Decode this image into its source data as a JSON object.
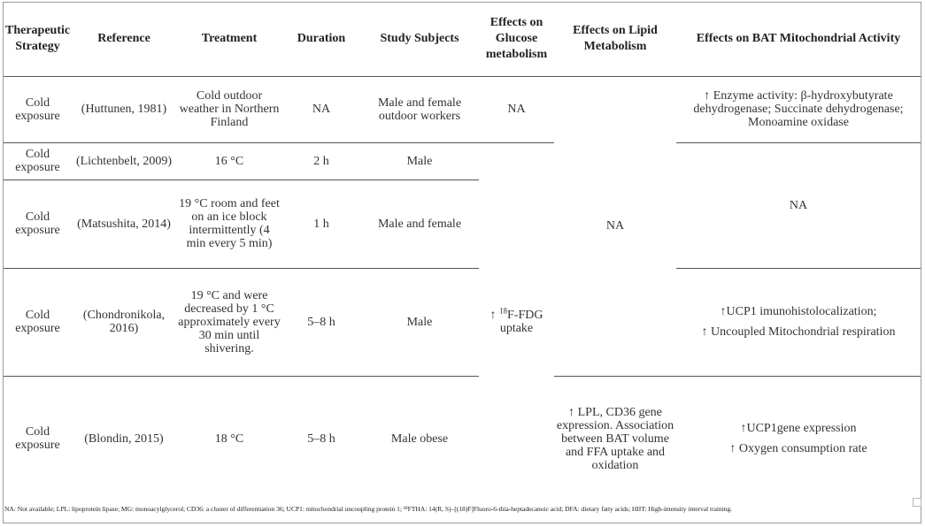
{
  "table": {
    "headers": [
      "Therapeutic Strategy",
      "Reference",
      "Treatment",
      "Duration",
      "Study Subjects",
      "Effects on Glucose metabolism",
      "Effects on Lipid Metabolism",
      "Effects on BAT Mitochondrial Activity"
    ],
    "rows": [
      {
        "strategy": "Cold exposure",
        "reference": "(Huttunen, 1981)",
        "treatment": "Cold outdoor weather in Northern Finland",
        "duration": "NA",
        "subjects": "Male and female outdoor workers",
        "glucose": "NA",
        "bat": "↑ Enzyme activity: β-hydroxybutyrate dehydrogenase; Succinate dehydrogenase; Monoamine oxidase"
      },
      {
        "strategy": "Cold exposure",
        "reference": "(Lichtenbelt, 2009)",
        "treatment": "16 °C",
        "duration": "2 h",
        "subjects": "Male"
      },
      {
        "strategy": "Cold exposure",
        "reference": "(Matsushita, 2014)",
        "treatment": "19 °C room and feet on an ice block intermittently (4 min every 5 min)",
        "duration": "1 h",
        "subjects": "Male and female",
        "bat": "NA"
      },
      {
        "strategy": "Cold exposure",
        "reference": "(Chondronikola, 2016)",
        "treatment": "19 °C and were decreased by 1 °C approximately every 30 min until shivering.",
        "duration": "5–8 h",
        "subjects": "Male",
        "bat_line1": "↑UCP1 imunohistolocalization;",
        "bat_line2": "↑ Uncoupled Mitochondrial respiration"
      },
      {
        "strategy": "Cold exposure",
        "reference": "(Blondin, 2015)",
        "treatment": "18 °C",
        "duration": "5–8 h",
        "subjects": "Male obese",
        "lipid": "↑ LPL, CD36 gene expression. Association between BAT volume and FFA uptake and oxidation",
        "bat_line1": "↑UCP1gene expression",
        "bat_line2": "↑ Oxygen consumption rate"
      }
    ],
    "lipid_merged": "NA",
    "glucose_merged_prefix": "↑ ",
    "glucose_merged_sup": "18",
    "glucose_merged_rest": "F-FDG uptake"
  },
  "footnote": "NA: Not available; LPL: lipoprotein lipase; MG: monoacylglycerol; CD36: a cluster of differentiation 36; UCP1: mitochondrial uncoupling protein 1; ¹⁸FTHA: 14(R, S)–[(18)F]Fluoro-6-thia-heptadecanoic acid; DFA: dietary fatty acids; HIIT: High-intensity interval training."
}
